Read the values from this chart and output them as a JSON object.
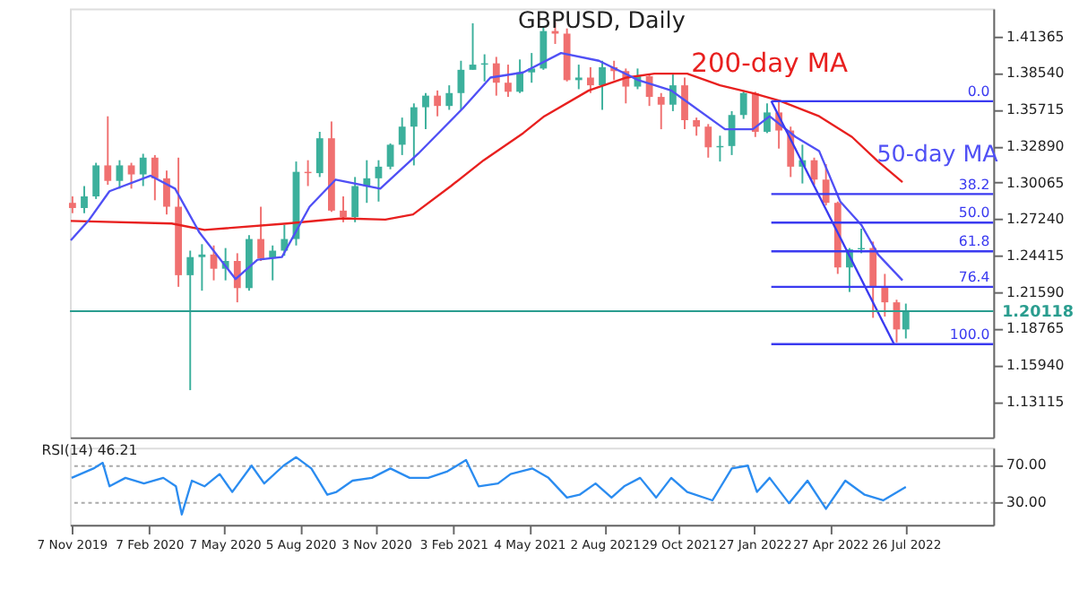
{
  "chart_data": [
    {
      "type": "candlestick",
      "title": "GBPUSD, Daily",
      "x": [
        "2019-11-08",
        "2019-11-22",
        "2019-12-06",
        "2019-12-20",
        "2020-01-03",
        "2020-01-17",
        "2020-01-31",
        "2020-02-14",
        "2020-02-28",
        "2020-03-13",
        "2020-03-27",
        "2020-04-10",
        "2020-04-24",
        "2020-05-08",
        "2020-05-22",
        "2020-06-05",
        "2020-06-19",
        "2020-07-03",
        "2020-07-17",
        "2020-07-31",
        "2020-08-14",
        "2020-08-28",
        "2020-09-11",
        "2020-09-25",
        "2020-10-09",
        "2020-10-23",
        "2020-11-06",
        "2020-11-20",
        "2020-12-04",
        "2020-12-18",
        "2021-01-01",
        "2021-01-15",
        "2021-01-29",
        "2021-02-12",
        "2021-02-26",
        "2021-03-12",
        "2021-03-26",
        "2021-04-09",
        "2021-04-23",
        "2021-05-07",
        "2021-05-21",
        "2021-06-04",
        "2021-06-18",
        "2021-07-02",
        "2021-07-16",
        "2021-07-30",
        "2021-08-13",
        "2021-08-27",
        "2021-09-10",
        "2021-09-24",
        "2021-10-08",
        "2021-10-22",
        "2021-11-05",
        "2021-11-19",
        "2021-12-03",
        "2021-12-17",
        "2021-12-31",
        "2022-01-14",
        "2022-01-28",
        "2022-02-11",
        "2022-02-25",
        "2022-03-11",
        "2022-03-25",
        "2022-04-08",
        "2022-04-22",
        "2022-05-06",
        "2022-05-20",
        "2022-06-03",
        "2022-06-17",
        "2022-07-01",
        "2022-07-15",
        "2022-07-26"
      ],
      "ohlc": [
        [
          1.285,
          1.29,
          1.277,
          1.281
        ],
        [
          1.281,
          1.298,
          1.277,
          1.29
        ],
        [
          1.29,
          1.316,
          1.288,
          1.314
        ],
        [
          1.314,
          1.352,
          1.299,
          1.302
        ],
        [
          1.302,
          1.318,
          1.296,
          1.314
        ],
        [
          1.314,
          1.316,
          1.296,
          1.307
        ],
        [
          1.307,
          1.323,
          1.298,
          1.32
        ],
        [
          1.32,
          1.322,
          1.287,
          1.304
        ],
        [
          1.304,
          1.31,
          1.276,
          1.282
        ],
        [
          1.282,
          1.32,
          1.22,
          1.229
        ],
        [
          1.229,
          1.248,
          1.14,
          1.243
        ],
        [
          1.243,
          1.253,
          1.217,
          1.245
        ],
        [
          1.245,
          1.252,
          1.225,
          1.234
        ],
        [
          1.234,
          1.25,
          1.225,
          1.24
        ],
        [
          1.24,
          1.246,
          1.208,
          1.219
        ],
        [
          1.219,
          1.26,
          1.217,
          1.257
        ],
        [
          1.257,
          1.282,
          1.24,
          1.242
        ],
        [
          1.242,
          1.252,
          1.225,
          1.248
        ],
        [
          1.248,
          1.268,
          1.244,
          1.257
        ],
        [
          1.257,
          1.317,
          1.252,
          1.309
        ],
        [
          1.309,
          1.318,
          1.298,
          1.308
        ],
        [
          1.308,
          1.34,
          1.305,
          1.335
        ],
        [
          1.335,
          1.348,
          1.278,
          1.279
        ],
        [
          1.279,
          1.29,
          1.27,
          1.274
        ],
        [
          1.274,
          1.305,
          1.27,
          1.298
        ],
        [
          1.298,
          1.318,
          1.285,
          1.304
        ],
        [
          1.304,
          1.318,
          1.286,
          1.313
        ],
        [
          1.313,
          1.331,
          1.311,
          1.33
        ],
        [
          1.33,
          1.351,
          1.322,
          1.344
        ],
        [
          1.344,
          1.362,
          1.314,
          1.359
        ],
        [
          1.359,
          1.37,
          1.342,
          1.368
        ],
        [
          1.368,
          1.372,
          1.352,
          1.36
        ],
        [
          1.36,
          1.376,
          1.357,
          1.37
        ],
        [
          1.37,
          1.395,
          1.357,
          1.388
        ],
        [
          1.388,
          1.424,
          1.388,
          1.392
        ],
        [
          1.392,
          1.4,
          1.379,
          1.393
        ],
        [
          1.393,
          1.398,
          1.368,
          1.378
        ],
        [
          1.378,
          1.392,
          1.367,
          1.371
        ],
        [
          1.371,
          1.396,
          1.37,
          1.386
        ],
        [
          1.386,
          1.401,
          1.378,
          1.389
        ],
        [
          1.389,
          1.422,
          1.388,
          1.418
        ],
        [
          1.418,
          1.425,
          1.408,
          1.416
        ],
        [
          1.416,
          1.42,
          1.379,
          1.38
        ],
        [
          1.38,
          1.392,
          1.373,
          1.382
        ],
        [
          1.382,
          1.39,
          1.37,
          1.376
        ],
        [
          1.376,
          1.395,
          1.357,
          1.39
        ],
        [
          1.39,
          1.395,
          1.38,
          1.387
        ],
        [
          1.387,
          1.389,
          1.362,
          1.375
        ],
        [
          1.375,
          1.389,
          1.373,
          1.383
        ],
        [
          1.383,
          1.385,
          1.36,
          1.367
        ],
        [
          1.367,
          1.37,
          1.342,
          1.361
        ],
        [
          1.361,
          1.385,
          1.356,
          1.376
        ],
        [
          1.376,
          1.382,
          1.342,
          1.349
        ],
        [
          1.349,
          1.351,
          1.337,
          1.344
        ],
        [
          1.344,
          1.346,
          1.32,
          1.328
        ],
        [
          1.328,
          1.337,
          1.317,
          1.329
        ],
        [
          1.329,
          1.356,
          1.322,
          1.353
        ],
        [
          1.353,
          1.372,
          1.35,
          1.37
        ],
        [
          1.37,
          1.371,
          1.336,
          1.34
        ],
        [
          1.34,
          1.362,
          1.339,
          1.355
        ],
        [
          1.355,
          1.364,
          1.327,
          1.341
        ],
        [
          1.341,
          1.344,
          1.305,
          1.313
        ],
        [
          1.313,
          1.33,
          1.3,
          1.318
        ],
        [
          1.318,
          1.32,
          1.299,
          1.303
        ],
        [
          1.303,
          1.315,
          1.283,
          1.285
        ],
        [
          1.285,
          1.286,
          1.23,
          1.235
        ],
        [
          1.235,
          1.25,
          1.216,
          1.249
        ],
        [
          1.249,
          1.265,
          1.246,
          1.25
        ],
        [
          1.25,
          1.255,
          1.196,
          1.22
        ],
        [
          1.22,
          1.23,
          1.197,
          1.208
        ],
        [
          1.208,
          1.21,
          1.177,
          1.187
        ],
        [
          1.187,
          1.207,
          1.18,
          1.20118
        ]
      ],
      "colors": [
        "#f07070",
        "#3cb09c",
        "#3cb09c",
        "#f07070",
        "#3cb09c",
        "#f07070",
        "#3cb09c",
        "#f07070",
        "#f07070",
        "#f07070",
        "#3cb09c",
        "#3cb09c",
        "#f07070",
        "#3cb09c",
        "#f07070",
        "#3cb09c",
        "#f07070",
        "#3cb09c",
        "#3cb09c",
        "#3cb09c",
        "#f07070",
        "#3cb09c",
        "#f07070",
        "#f07070",
        "#3cb09c",
        "#3cb09c",
        "#3cb09c",
        "#3cb09c",
        "#3cb09c",
        "#3cb09c",
        "#3cb09c",
        "#f07070",
        "#3cb09c",
        "#3cb09c",
        "#3cb09c",
        "#3cb09c",
        "#f07070",
        "#f07070",
        "#3cb09c",
        "#3cb09c",
        "#3cb09c",
        "#f07070",
        "#f07070",
        "#3cb09c",
        "#f07070",
        "#3cb09c",
        "#f07070",
        "#f07070",
        "#3cb09c",
        "#f07070",
        "#f07070",
        "#3cb09c",
        "#f07070",
        "#f07070",
        "#f07070",
        "#3cb09c",
        "#3cb09c",
        "#3cb09c",
        "#f07070",
        "#3cb09c",
        "#f07070",
        "#f07070",
        "#3cb09c",
        "#f07070",
        "#f07070",
        "#f07070",
        "#3cb09c",
        "#3cb09c",
        "#f07070",
        "#f07070",
        "#f07070",
        "#3cb09c"
      ],
      "series": [
        {
          "type": "line",
          "name": "200-day MA",
          "color": "#e8201f",
          "x": [
            "2019-11-06",
            "2020-03-05",
            "2020-04-13",
            "2020-07-20",
            "2020-09-24",
            "2020-11-14",
            "2020-12-17",
            "2021-01-31",
            "2021-03-11",
            "2021-04-27",
            "2021-05-22",
            "2021-07-14",
            "2021-08-28",
            "2021-09-30",
            "2021-11-08",
            "2021-12-17",
            "2022-01-25",
            "2022-02-26",
            "2022-04-14",
            "2022-05-23",
            "2022-06-23",
            "2022-07-22"
          ],
          "values": [
            1.271,
            1.269,
            1.264,
            1.269,
            1.273,
            1.272,
            1.276,
            1.298,
            1.318,
            1.339,
            1.352,
            1.372,
            1.382,
            1.385,
            1.385,
            1.376,
            1.37,
            1.364,
            1.352,
            1.336,
            1.317,
            1.301
          ]
        },
        {
          "type": "line",
          "name": "50-day MA",
          "color": "#5050f5",
          "x": [
            "2019-11-06",
            "2019-11-28",
            "2019-12-22",
            "2020-02-09",
            "2020-03-09",
            "2020-04-07",
            "2020-05-20",
            "2020-06-15",
            "2020-07-14",
            "2020-08-16",
            "2020-09-16",
            "2020-11-08",
            "2020-12-23",
            "2021-02-14",
            "2021-03-19",
            "2021-04-27",
            "2021-06-11",
            "2021-07-26",
            "2021-09-11",
            "2021-10-20",
            "2021-12-23",
            "2022-01-25",
            "2022-02-14",
            "2022-03-17",
            "2022-04-14",
            "2022-05-09",
            "2022-06-03",
            "2022-06-23",
            "2022-07-22"
          ],
          "values": [
            1.256,
            1.272,
            1.294,
            1.306,
            1.296,
            1.262,
            1.226,
            1.241,
            1.243,
            1.282,
            1.303,
            1.296,
            1.323,
            1.358,
            1.382,
            1.386,
            1.401,
            1.395,
            1.38,
            1.372,
            1.342,
            1.342,
            1.352,
            1.336,
            1.325,
            1.286,
            1.268,
            1.245,
            1.225
          ]
        },
        {
          "type": "line",
          "color": "#3a3af0",
          "x": [
            "2022-02-16",
            "2022-07-12"
          ],
          "values": [
            1.3637,
            1.1756
          ]
        },
        {
          "type": "line",
          "name": "0.0",
          "color": "#3a3af0",
          "x": [
            "2022-02-16",
            "2022-11-07"
          ],
          "values": [
            1.3637,
            1.3637
          ]
        },
        {
          "type": "line",
          "name": "38.2",
          "color": "#3a3af0",
          "x": [
            "2022-02-16",
            "2022-11-07"
          ],
          "values": [
            1.2918,
            1.2918
          ]
        },
        {
          "type": "line",
          "name": "50.0",
          "color": "#3a3af0",
          "x": [
            "2022-02-16",
            "2022-11-07"
          ],
          "values": [
            1.2697,
            1.2697
          ]
        },
        {
          "type": "line",
          "name": "61.8",
          "color": "#3a3af0",
          "x": [
            "2022-02-16",
            "2022-11-07"
          ],
          "values": [
            1.2475,
            1.2475
          ]
        },
        {
          "type": "line",
          "name": "76.4",
          "color": "#3a3af0",
          "x": [
            "2022-02-16",
            "2022-11-07"
          ],
          "values": [
            1.22,
            1.22
          ]
        },
        {
          "type": "line",
          "name": "100.0",
          "color": "#3a3af0",
          "x": [
            "2022-02-16",
            "2022-11-07"
          ],
          "values": [
            1.1756,
            1.1756
          ]
        }
      ],
      "ref_lines": [
        {
          "axis": "y",
          "value": 1.20118,
          "label": "1.20118",
          "color": "#2a9d8f"
        }
      ],
      "xlim": [
        "2019-11-05",
        "2022-11-07"
      ],
      "ylim": [
        1.1035,
        1.4354
      ],
      "yticks": [
        1.41365,
        {
          "value": 1.3854,
          "label": "1.38540"
        },
        1.35715,
        {
          "value": 1.3289,
          "label": "1.32890"
        },
        1.30065,
        {
          "value": 1.2724,
          "label": "1.27240"
        },
        1.24415,
        {
          "value": 1.2159,
          "label": "1.21590"
        },
        1.18765,
        {
          "value": 1.1594,
          "label": "1.15940"
        },
        1.13115
      ],
      "tick_labels": "y",
      "grid": false
    },
    {
      "type": "line",
      "title": "RSI(14) 46.21",
      "color": "#2b8cf0",
      "x": [
        "2019-11-07",
        "2019-12-03",
        "2019-12-14",
        "2019-12-22",
        "2020-01-10",
        "2020-02-01",
        "2020-02-24",
        "2020-03-10",
        "2020-03-17",
        "2020-03-29",
        "2020-04-13",
        "2020-05-01",
        "2020-05-16",
        "2020-06-08",
        "2020-06-23",
        "2020-07-16",
        "2020-07-31",
        "2020-08-18",
        "2020-09-06",
        "2020-09-17",
        "2020-10-06",
        "2020-10-29",
        "2020-11-20",
        "2020-12-13",
        "2021-01-04",
        "2021-01-27",
        "2021-02-18",
        "2021-03-05",
        "2021-03-28",
        "2021-04-12",
        "2021-05-08",
        "2021-05-27",
        "2021-06-18",
        "2021-07-03",
        "2021-07-22",
        "2021-08-10",
        "2021-08-25",
        "2021-09-13",
        "2021-10-02",
        "2021-10-20",
        "2021-11-08",
        "2021-12-08",
        "2021-12-31",
        "2022-01-19",
        "2022-01-30",
        "2022-02-14",
        "2022-03-09",
        "2022-03-31",
        "2022-04-22",
        "2022-05-15",
        "2022-06-07",
        "2022-06-29",
        "2022-07-26"
      ],
      "values": [
        56,
        66,
        72,
        47,
        56,
        50,
        56,
        47,
        17,
        53,
        47,
        60,
        41,
        69,
        50,
        69,
        78,
        66,
        38,
        41,
        53,
        56,
        66,
        56,
        56,
        63,
        75,
        47,
        50,
        60,
        66,
        56,
        35,
        38,
        50,
        35,
        47,
        56,
        35,
        56,
        41,
        32,
        66,
        69,
        41,
        56,
        29,
        53,
        23,
        53,
        38,
        32,
        46.21
      ],
      "xlim": [
        "2019-11-05",
        "2022-11-07"
      ],
      "ylim": [
        6,
        88
      ],
      "yticks": [
        {
          "value": 70,
          "label": "70.00"
        },
        {
          "value": 30,
          "label": "30.00"
        }
      ],
      "xticks": [
        {
          "value": "2019-11-07",
          "label": "7 Nov 2019"
        },
        {
          "value": "2020-02-07",
          "label": "7 Feb 2020"
        },
        {
          "value": "2020-05-07",
          "label": "7 May 2020"
        },
        {
          "value": "2020-08-05",
          "label": "5 Aug 2020"
        },
        {
          "value": "2020-11-03",
          "label": "3 Nov 2020"
        },
        {
          "value": "2021-02-03",
          "label": "3 Feb 2021"
        },
        {
          "value": "2021-05-04",
          "label": "4 May 2021"
        },
        {
          "value": "2021-08-02",
          "label": "2 Aug 2021"
        },
        {
          "value": "2021-10-29",
          "label": "29 Oct 2021"
        },
        {
          "value": "2022-01-27",
          "label": "27 Jan 2022"
        },
        {
          "value": "2022-04-27",
          "label": "27 Apr 2022"
        },
        {
          "value": "2022-07-26",
          "label": "26 Jul 2022"
        }
      ],
      "grid": "y"
    }
  ]
}
